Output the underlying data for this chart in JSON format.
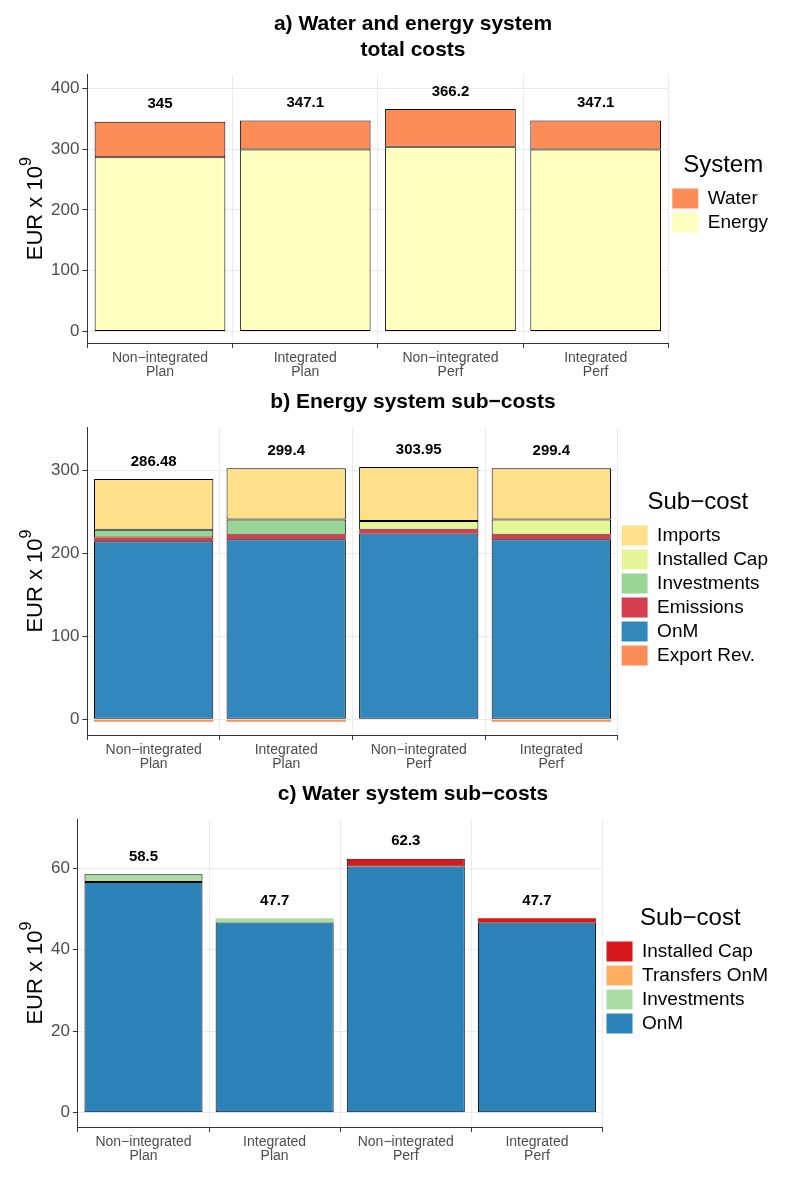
{
  "chart_data": [
    {
      "type": "bar",
      "title": "a) Water and energy system\ntotal costs",
      "ylabel": "EUR x 10$^{9}$",
      "legend_title": "System",
      "categories": [
        "Non−integrated\nPlan",
        "Integrated\nPlan",
        "Non−integrated\nPerf",
        "Integrated\nPerf"
      ],
      "stacked": true,
      "series": [
        {
          "name": "Energy",
          "color": "#ffffbf",
          "values": [
            286.48,
            299.4,
            303.95,
            299.4
          ]
        },
        {
          "name": "Water",
          "color": "#fc8d59",
          "values": [
            58.5,
            47.7,
            62.3,
            47.7
          ]
        }
      ],
      "totals": [
        "345",
        "347.1",
        "366.2",
        "347.1"
      ],
      "ylim": [
        -19,
        423
      ],
      "yticks": [
        0,
        100,
        200,
        300,
        400
      ],
      "grid": true,
      "legend": "right"
    },
    {
      "type": "bar",
      "title": "b) Energy system sub−costs",
      "ylabel": "EUR x 10$^{9}$",
      "legend_title": "Sub−cost",
      "categories": [
        "Non−integrated\nPlan",
        "Integrated\nPlan",
        "Non−integrated\nPerf",
        "Integrated\nPerf"
      ],
      "stacked": true,
      "series": [
        {
          "name": "Export Rev.",
          "color": "#fc8d59",
          "values": [
            -3,
            -3,
            0,
            -3
          ]
        },
        {
          "name": "OnM",
          "color": "#3288bd",
          "values": [
            214.5,
            217,
            224,
            217
          ]
        },
        {
          "name": "Emissions",
          "color": "#d53e4f",
          "values": [
            4.5,
            5.3,
            4.5,
            5.3
          ]
        },
        {
          "name": "Investments",
          "color": "#99d594",
          "values": [
            9.5,
            18.4,
            0,
            0
          ]
        },
        {
          "name": "Installed Cap",
          "color": "#e6f598",
          "values": [
            0,
            0,
            10.5,
            18.4
          ]
        },
        {
          "name": "Imports",
          "color": "#fee08b",
          "values": [
            60.98,
            61.7,
            64.95,
            61.7
          ]
        }
      ],
      "totals": [
        "286.48",
        "299.4",
        "303.95",
        "299.4"
      ],
      "ylim": [
        -19,
        352
      ],
      "yticks": [
        0,
        100,
        200,
        300
      ],
      "grid": true,
      "legend": "right"
    },
    {
      "type": "bar",
      "title": "c) Water system sub−costs",
      "ylabel": "EUR x 10$^{9}$",
      "legend_title": "Sub−cost",
      "categories": [
        "Non−integrated\nPlan",
        "Integrated\nPlan",
        "Non−integrated\nPerf",
        "Integrated\nPerf"
      ],
      "stacked": true,
      "series": [
        {
          "name": "OnM",
          "color": "#2b83ba",
          "values": [
            56.6,
            46.65,
            60.4,
            46.65
          ]
        },
        {
          "name": "Investments",
          "color": "#abdda4",
          "values": [
            1.9,
            1.05,
            0,
            0
          ]
        },
        {
          "name": "Transfers OnM",
          "color": "#fdae61",
          "values": [
            0,
            0,
            0,
            0
          ]
        },
        {
          "name": "Installed Cap",
          "color": "#d7191c",
          "values": [
            0,
            0,
            1.9,
            1.05
          ]
        }
      ],
      "totals": [
        "58.5",
        "47.7",
        "62.3",
        "47.7"
      ],
      "ylim": [
        -3.5,
        72
      ],
      "yticks": [
        0,
        20,
        40,
        60
      ],
      "grid": true,
      "legend": "right"
    }
  ]
}
